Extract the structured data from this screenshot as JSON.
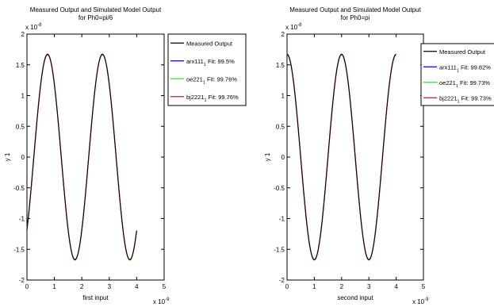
{
  "chart_data": [
    {
      "type": "line",
      "title_lines": [
        "Measured Output and Simulated Model Output",
        "for  Ph0=pi/6"
      ],
      "xlabel": "first input",
      "ylabel": "y 1",
      "x_exponent": "x 10",
      "x_exponent_power": "-9",
      "y_exponent": "x 10",
      "y_exponent_power": "-8",
      "xlim": [
        0,
        5
      ],
      "ylim": [
        -2,
        2
      ],
      "xticks": [
        0,
        1,
        2,
        3,
        4,
        5
      ],
      "xtick_labels": [
        "0",
        "1",
        "2",
        "3",
        "4",
        "5"
      ],
      "yticks": [
        -2,
        -1.5,
        -1,
        -0.5,
        0,
        0.5,
        1,
        1.5,
        2
      ],
      "ytick_labels": [
        "-2",
        "-1.5",
        "-1",
        "-0.5",
        "0",
        "0.5",
        "1",
        "1.5",
        "2"
      ],
      "grid": false,
      "legend_placement": "outside-right",
      "x_range": [
        0,
        4
      ],
      "signal": {
        "amplitude": 1.67,
        "period": 2,
        "phase": -0.7854
      },
      "end_point": {
        "x": 4,
        "y": -1.2
      },
      "series": [
        {
          "name": "Measured Output",
          "color": "#000000"
        },
        {
          "name": "arx111",
          "sub": "1",
          "fit": " Fit: 99.5%",
          "color": "#0000ff"
        },
        {
          "name": "oe221",
          "sub": "1",
          "fit": " Fit: 99.76%",
          "color": "#00ff00"
        },
        {
          "name": "bj2221",
          "sub": "1",
          "fit": " Fit: 99.76%",
          "color": "#ff0000"
        }
      ]
    },
    {
      "type": "line",
      "title_lines": [
        "Measured Output and Simulated Model Output",
        "for  Ph0=pi"
      ],
      "xlabel": "second input",
      "ylabel": "y 1",
      "x_exponent": "x 10",
      "x_exponent_power": "-9",
      "y_exponent": "x 10",
      "y_exponent_power": "-8",
      "xlim": [
        0,
        5
      ],
      "ylim": [
        -2,
        2
      ],
      "xticks": [
        0,
        1,
        2,
        3,
        4,
        5
      ],
      "xtick_labels": [
        "0",
        "1",
        "2",
        "3",
        "4",
        "5"
      ],
      "yticks": [
        -2,
        -1.5,
        -1,
        -0.5,
        0,
        0.5,
        1,
        1.5,
        2
      ],
      "ytick_labels": [
        "-2",
        "-1.5",
        "-1",
        "-0.5",
        "0",
        "0.5",
        "1",
        "1.5",
        "2"
      ],
      "grid": false,
      "legend_placement": "outside-right",
      "x_range": [
        0,
        4
      ],
      "signal": {
        "amplitude": 1.67,
        "period": 2,
        "phase": 1.5708
      },
      "series": [
        {
          "name": "Measured Output",
          "color": "#000000"
        },
        {
          "name": "arx111",
          "sub": "1",
          "fit": " Fit: 99.82%",
          "color": "#0000ff"
        },
        {
          "name": "oe221",
          "sub": "1",
          "fit": " Fit: 99.73%",
          "color": "#00ff00"
        },
        {
          "name": "bj2221",
          "sub": "1",
          "fit": " Fit: 99.73%",
          "color": "#ff0000"
        }
      ]
    }
  ]
}
